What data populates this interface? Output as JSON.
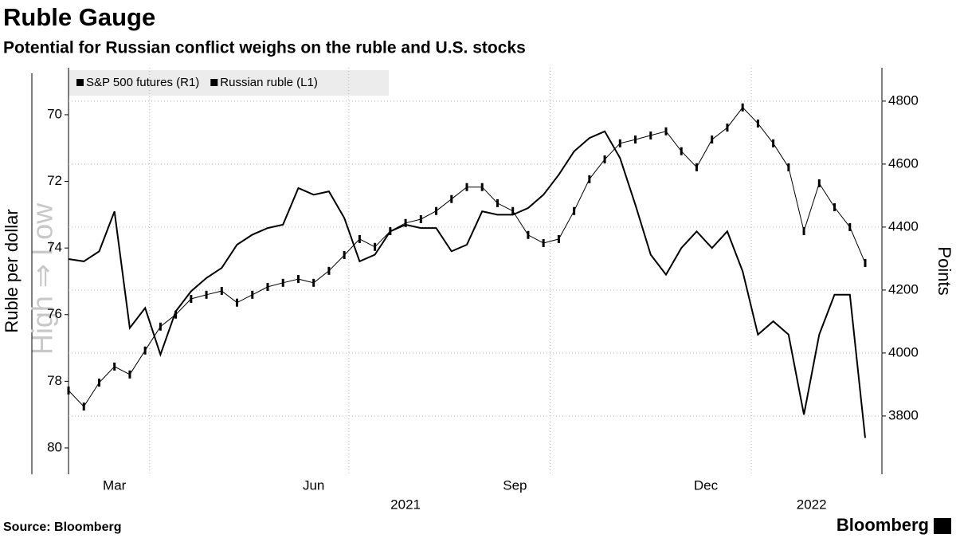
{
  "chart_data": {
    "type": "line",
    "title": "Ruble Gauge",
    "subtitle": "Potential for Russian conflict weighs on the ruble and U.S. stocks",
    "y_label": "Ruble per dollar",
    "y2_label": "Points",
    "annotation": "High ⇒ Low",
    "source": "Source: Bloomberg",
    "brand": "Bloomberg",
    "categories": [
      null,
      null,
      null,
      null,
      null,
      null,
      null,
      null,
      null,
      null,
      null,
      null,
      null,
      null,
      null,
      null,
      null,
      null,
      null,
      null,
      null,
      null,
      null,
      null,
      null,
      null,
      null,
      null,
      null,
      null,
      null,
      null,
      null,
      null,
      null,
      null,
      null,
      null,
      null,
      null,
      null,
      null,
      null,
      null,
      null,
      null,
      null,
      null,
      null,
      null,
      null,
      null,
      null
    ],
    "xlim": [
      0,
      52
    ],
    "xticks": [
      {
        "value": 3.0,
        "label": "Mar"
      },
      {
        "value": 16.0,
        "label": "Jun"
      },
      {
        "value": 29.14,
        "label": "Sep"
      },
      {
        "value": 41.6,
        "label": "Dec"
      }
    ],
    "year_ticks": [
      {
        "value": 22.0,
        "label": "2021"
      },
      {
        "value": 48.5,
        "label": "2022"
      }
    ],
    "xgrid": [
      5.29,
      18.29,
      31.43,
      44.57
    ],
    "ylim": [
      80.79,
      68.59
    ],
    "yticks": [
      70,
      72,
      74,
      76,
      78,
      80
    ],
    "y2lim": [
      3615,
      4906
    ],
    "y2ticks": [
      3800,
      4000,
      4200,
      4400,
      4600,
      4800
    ],
    "grid": true,
    "legend": "top-left",
    "series": [
      {
        "name": "S&P 500 futures (R1)",
        "color": "#000000",
        "axis": "y2",
        "values": [
          3881,
          3830,
          3906,
          3957,
          3932,
          4008,
          4084,
          4122,
          4172,
          4185,
          4197,
          4160,
          4185,
          4210,
          4223,
          4235,
          4223,
          4261,
          4311,
          4362,
          4337,
          4387,
          4413,
          4425,
          4451,
          4489,
          4527,
          4527,
          4476,
          4451,
          4375,
          4349,
          4362,
          4451,
          4552,
          4615,
          4666,
          4678,
          4691,
          4704,
          4641,
          4590,
          4678,
          4716,
          4780,
          4729,
          4666,
          4590,
          4387,
          4539,
          4463,
          4400,
          4286
        ]
      },
      {
        "name": "Russian ruble (L1)",
        "color": "#000000",
        "axis": "y",
        "values": [
          74.33,
          74.4,
          74.1,
          72.9,
          76.4,
          75.8,
          77.2,
          75.9,
          75.3,
          74.9,
          74.6,
          73.9,
          73.6,
          73.4,
          73.3,
          72.2,
          72.4,
          72.3,
          73.1,
          74.4,
          74.2,
          73.5,
          73.3,
          73.4,
          73.4,
          74.1,
          73.9,
          72.9,
          73.0,
          73.0,
          72.8,
          72.4,
          71.8,
          71.1,
          70.7,
          70.5,
          71.3,
          72.7,
          74.2,
          74.8,
          74.0,
          73.5,
          74.0,
          73.5,
          74.7,
          76.6,
          76.2,
          76.6,
          79.0,
          76.6,
          75.4,
          75.4,
          79.7
        ]
      }
    ]
  }
}
